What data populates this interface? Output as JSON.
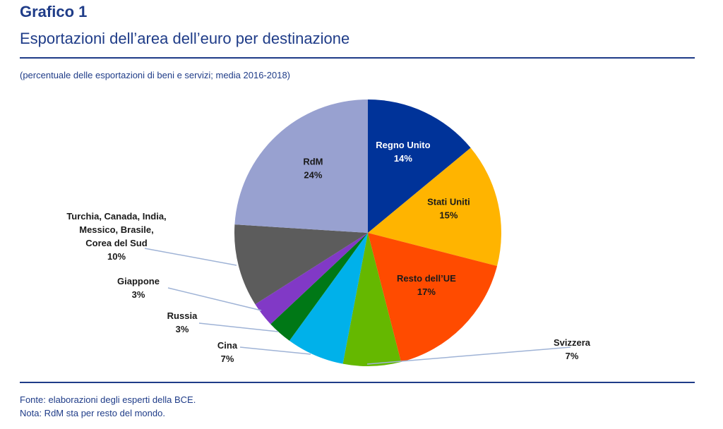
{
  "header": {
    "figure_number": "Grafico 1",
    "title": "Esportazioni dell’area dell’euro per destinazione",
    "subtitle": "(percentuale delle esportazioni di beni e servizi; media 2016-2018)"
  },
  "footer": {
    "source": "Fonte: elaborazioni degli esperti della BCE.",
    "note": "Nota: RdM sta per resto del mondo."
  },
  "chart_data": {
    "type": "pie",
    "title": "Esportazioni dell’area dell’euro per destinazione",
    "unit": "%",
    "start": "12 o'clock",
    "direction": "clockwise",
    "slices": [
      {
        "name": "Regno Unito",
        "label_lines": [
          "Regno Unito"
        ],
        "value_label": "14%",
        "value": 14,
        "color": "#003399",
        "label_inside": true,
        "text_color": "#ffffff"
      },
      {
        "name": "Stati Uniti",
        "label_lines": [
          "Stati Uniti"
        ],
        "value_label": "15%",
        "value": 15,
        "color": "#ffb400",
        "label_inside": true,
        "text_color": "#1a1a1a"
      },
      {
        "name": "Resto dell’UE",
        "label_lines": [
          "Resto dell’UE"
        ],
        "value_label": "17%",
        "value": 17,
        "color": "#ff4b00",
        "label_inside": true,
        "text_color": "#1a1a1a"
      },
      {
        "name": "Svizzera",
        "label_lines": [
          "Svizzera"
        ],
        "value_label": "7%",
        "value": 7,
        "color": "#65b800",
        "label_inside": false,
        "text_color": "#1a1a1a"
      },
      {
        "name": "Cina",
        "label_lines": [
          "Cina"
        ],
        "value_label": "7%",
        "value": 7,
        "color": "#00b1ea",
        "label_inside": false,
        "text_color": "#1a1a1a"
      },
      {
        "name": "Russia",
        "label_lines": [
          "Russia"
        ],
        "value_label": "3%",
        "value": 3,
        "color": "#007816",
        "label_inside": false,
        "text_color": "#1a1a1a"
      },
      {
        "name": "Giappone",
        "label_lines": [
          "Giappone"
        ],
        "value_label": "3%",
        "value": 3,
        "color": "#8139c6",
        "label_inside": false,
        "text_color": "#1a1a1a"
      },
      {
        "name": "Turchia, Canada, India, Messico, Brasile, Corea del Sud",
        "label_lines": [
          "Turchia, Canada, India,",
          "Messico, Brasile,",
          "Corea del Sud"
        ],
        "value_label": "10%",
        "value": 10,
        "color": "#5c5c5c",
        "label_inside": false,
        "text_color": "#1a1a1a"
      },
      {
        "name": "RdM",
        "label_lines": [
          "RdM"
        ],
        "value_label": "24%",
        "value": 24,
        "color": "#98a1d0",
        "label_inside": true,
        "text_color": "#1a1a1a"
      }
    ]
  }
}
